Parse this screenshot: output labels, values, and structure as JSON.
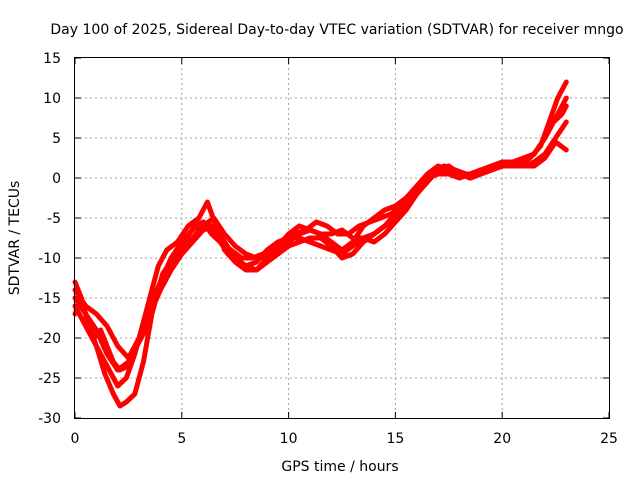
{
  "chart_data": {
    "type": "line",
    "title": "Day 100 of 2025, Sidereal Day-to-day VTEC variation (SDTVAR) for receiver mngo",
    "xlabel": "GPS time / hours",
    "ylabel": "SDTVAR / TECUs",
    "xlim": [
      0,
      25
    ],
    "ylim": [
      -30,
      15
    ],
    "x_ticks": [
      0,
      5,
      10,
      15,
      20,
      25
    ],
    "y_ticks": [
      -30,
      -25,
      -20,
      -15,
      -10,
      -5,
      0,
      5,
      10,
      15
    ],
    "grid": true,
    "colors": {
      "series": "#ff0000",
      "grid": "#a0a0a0",
      "frame": "#000000"
    },
    "series": [
      {
        "x": [
          0.0,
          0.3,
          0.6,
          1.0,
          1.4,
          1.8,
          2.1,
          2.4,
          2.8,
          3.2,
          3.6,
          4.0,
          4.5,
          5.0,
          5.5,
          6.0,
          6.4,
          6.8,
          7.2,
          7.6,
          8.0,
          8.5,
          9.0,
          9.5,
          10.0,
          10.5,
          11.0,
          11.5,
          12.0,
          12.5,
          13.0,
          13.5,
          14.0,
          14.5,
          15.0,
          15.5,
          16.0,
          16.5,
          17.0,
          17.5,
          18.0,
          18.5,
          19.0,
          19.5,
          20.0,
          20.5,
          21.0,
          21.5,
          22.0,
          22.4,
          22.8,
          23.0
        ],
        "y": [
          -13,
          -15,
          -18,
          -21,
          -24.5,
          -27,
          -28.5,
          -28,
          -27,
          -23,
          -17,
          -13,
          -10,
          -8,
          -6.5,
          -5.5,
          -6,
          -8,
          -9.5,
          -10.5,
          -11,
          -10.5,
          -9,
          -8,
          -7.5,
          -7.5,
          -8,
          -8.5,
          -9,
          -9.5,
          -8.5,
          -7.5,
          -8,
          -7,
          -5.5,
          -4,
          -2,
          -0.5,
          1,
          1.5,
          0.5,
          0,
          0.5,
          1,
          1.5,
          1.5,
          2,
          3,
          5,
          7,
          8,
          9
        ]
      },
      {
        "x": [
          0.0,
          0.4,
          0.8,
          1.2,
          1.6,
          2.0,
          2.4,
          2.8,
          3.2,
          3.6,
          3.9,
          4.3,
          4.8,
          5.3,
          5.8,
          6.2,
          6.6,
          7.0,
          7.5,
          8.0,
          8.5,
          9.0,
          9.5,
          10.0,
          10.5,
          11.0,
          11.5,
          12.0,
          12.5,
          13.0,
          13.5,
          14.0,
          14.5,
          15.0,
          15.5,
          16.0,
          16.5,
          17.0,
          17.5,
          18.0,
          18.5,
          19.0,
          19.5,
          20.0,
          20.5,
          21.0,
          21.5,
          22.0,
          22.4,
          22.8,
          23.0
        ],
        "y": [
          -16,
          -18,
          -20,
          -22,
          -24,
          -26,
          -25,
          -22,
          -18,
          -14,
          -11,
          -9,
          -8,
          -6,
          -5,
          -3,
          -6,
          -9,
          -10.5,
          -11.5,
          -11.5,
          -10,
          -8.5,
          -7,
          -6,
          -6.5,
          -7,
          -7,
          -6.5,
          -7.5,
          -7.5,
          -7,
          -6,
          -4.5,
          -3,
          -1,
          0.5,
          1.5,
          1,
          0.5,
          0.5,
          1,
          1.5,
          2,
          2,
          2.5,
          3,
          5,
          7,
          9,
          10
        ]
      },
      {
        "x": [
          0.0,
          0.3,
          0.6,
          0.9,
          1.2,
          1.5,
          1.8,
          2.1,
          2.5,
          2.9,
          3.3,
          3.7,
          4.1,
          4.6,
          5.1,
          5.6,
          6.0,
          6.4,
          6.8,
          7.3,
          7.8,
          8.3,
          8.8,
          9.3,
          9.8,
          10.3,
          10.8,
          11.3,
          11.8,
          12.3,
          12.8,
          13.3,
          13.8,
          14.3,
          14.8,
          15.3,
          15.8,
          16.3,
          16.8,
          17.3,
          17.8,
          18.3,
          18.8,
          19.3,
          19.8,
          20.3,
          20.8,
          21.3,
          21.8,
          22.2,
          22.6,
          23.0
        ],
        "y": [
          -17,
          -15,
          -18,
          -20,
          -19,
          -21,
          -23,
          -24,
          -23.5,
          -21,
          -19,
          -16,
          -12,
          -10,
          -8,
          -6,
          -5.5,
          -7,
          -8,
          -9,
          -10,
          -10,
          -9.5,
          -9,
          -8.5,
          -7,
          -6.5,
          -5.5,
          -6,
          -7,
          -7,
          -6,
          -5.5,
          -5,
          -4.5,
          -3.5,
          -2,
          -0.5,
          1,
          1.5,
          1,
          0.5,
          0.5,
          1,
          1.5,
          2,
          2,
          2.5,
          4,
          7,
          10,
          12
        ]
      },
      {
        "x": [
          0.0,
          0.5,
          1.0,
          1.5,
          2.0,
          2.5,
          3.0,
          3.5,
          4.0,
          4.5,
          5.0,
          5.5,
          6.0,
          6.5,
          7.0,
          7.5,
          8.0,
          8.5,
          9.0,
          9.5,
          10.0,
          10.5,
          11.0,
          11.5,
          12.0,
          12.5,
          13.0,
          13.5,
          14.0,
          14.5,
          15.0,
          15.5,
          16.0,
          16.5,
          17.0,
          17.5,
          18.0,
          18.5,
          19.0,
          19.5,
          20.0,
          20.5,
          21.0,
          21.5,
          22.0,
          22.5,
          23.0
        ],
        "y": [
          -14,
          -16,
          -17,
          -18.5,
          -21,
          -22.5,
          -20,
          -16,
          -13,
          -11,
          -9,
          -7.5,
          -6,
          -5,
          -7,
          -8.5,
          -9.5,
          -10,
          -10,
          -9,
          -8,
          -7,
          -6.5,
          -7,
          -8,
          -9,
          -8,
          -6,
          -5,
          -4,
          -3.5,
          -2.5,
          -1,
          0,
          1,
          1,
          0.5,
          0,
          0.5,
          1,
          1.5,
          1.5,
          1.5,
          2,
          3,
          5,
          7
        ]
      },
      {
        "x": [
          0.0,
          0.5,
          1.0,
          1.5,
          2.0,
          2.5,
          3.0,
          3.5,
          4.0,
          4.5,
          5.0,
          5.5,
          6.0,
          6.5,
          7.0,
          7.5,
          8.0,
          8.5,
          9.0,
          9.5,
          10.0,
          10.5,
          11.0,
          11.5,
          12.0,
          12.5,
          13.0,
          13.5,
          14.0,
          14.5,
          15.0,
          15.5,
          16.0,
          16.5,
          17.0,
          17.5,
          18.0,
          18.5,
          19.0,
          19.5,
          20.0,
          20.5,
          21.0,
          21.5,
          22.0,
          22.5,
          23.0
        ],
        "y": [
          -15,
          -17,
          -19,
          -22,
          -24,
          -23,
          -20,
          -17,
          -14,
          -11.5,
          -9.5,
          -8,
          -6.5,
          -6,
          -8,
          -10,
          -11,
          -11.5,
          -10.5,
          -9.5,
          -8.5,
          -8,
          -7.5,
          -7.5,
          -8.5,
          -10,
          -9.5,
          -8,
          -7,
          -6,
          -5,
          -3,
          -1,
          0,
          0.5,
          0.5,
          0,
          0.5,
          1,
          1,
          1.5,
          2,
          1.5,
          1.5,
          2.5,
          4.5,
          3.5
        ]
      }
    ]
  }
}
